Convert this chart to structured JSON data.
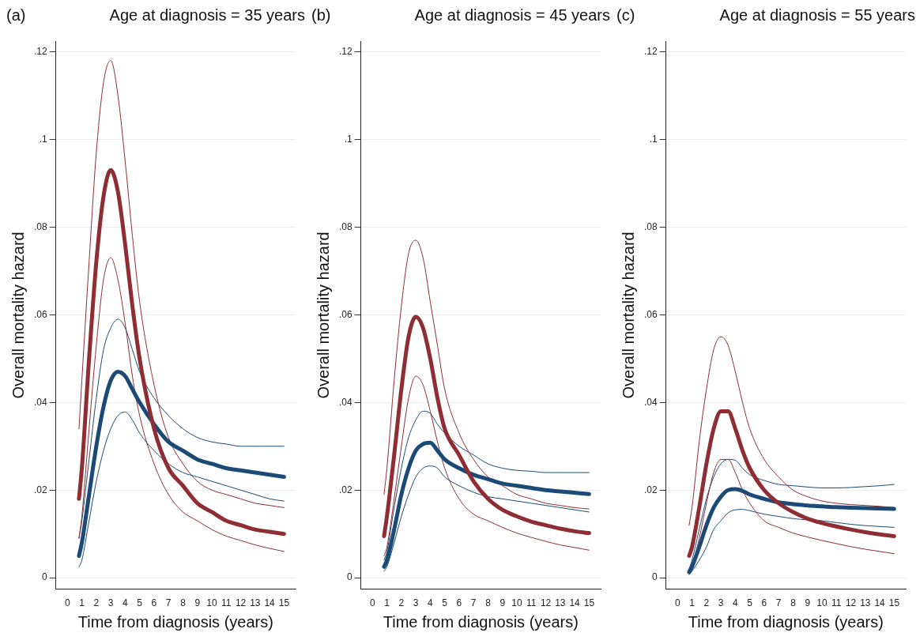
{
  "chart_data": [
    {
      "type": "line",
      "title": "Age at diagnosis = 35 years",
      "annotations": [
        "(a)"
      ],
      "xlabel": "Time from diagnosis (years)",
      "ylabel": "Overall mortality hazard",
      "xlim": [
        -0.8,
        15.8
      ],
      "ylim": [
        -0.0026,
        0.1224
      ],
      "xticks": [
        0,
        1,
        2,
        3,
        4,
        5,
        6,
        7,
        8,
        9,
        10,
        11,
        12,
        13,
        14,
        15
      ],
      "yticks": [
        {
          "value": 0,
          "label": "0"
        },
        {
          "value": 0.02,
          "label": ".02"
        },
        {
          "value": 0.04,
          "label": ".04"
        },
        {
          "value": 0.06,
          "label": ".06"
        },
        {
          "value": 0.08,
          "label": ".08"
        },
        {
          "value": 0.1,
          "label": ".1"
        },
        {
          "value": 0.12,
          "label": ".12"
        }
      ],
      "grid": "y",
      "legend": false,
      "x": [
        0.8,
        1,
        1.5,
        2,
        2.5,
        3,
        3.5,
        4,
        4.5,
        5,
        6,
        7,
        8,
        9,
        10,
        11,
        12,
        13,
        14,
        15
      ],
      "series": [
        {
          "color": "#8e2d33",
          "values": [
            0.018,
            0.025,
            0.05,
            0.072,
            0.087,
            0.093,
            0.088,
            0.076,
            0.062,
            0.05,
            0.034,
            0.025,
            0.021,
            0.017,
            0.015,
            0.013,
            0.012,
            0.011,
            0.0105,
            0.01
          ]
        },
        {
          "color": "#1a4a75",
          "values": [
            0.005,
            0.008,
            0.019,
            0.03,
            0.039,
            0.045,
            0.047,
            0.046,
            0.043,
            0.04,
            0.035,
            0.031,
            0.029,
            0.027,
            0.026,
            0.025,
            0.0245,
            0.024,
            0.0235,
            0.023
          ]
        },
        {
          "color": "#8e2d33",
          "values": [
            0.034,
            0.045,
            0.072,
            0.097,
            0.113,
            0.118,
            0.11,
            0.095,
            0.078,
            0.063,
            0.044,
            0.032,
            0.026,
            0.022,
            0.02,
            0.019,
            0.018,
            0.017,
            0.0165,
            0.016
          ]
        },
        {
          "color": "#8e2d33",
          "values": [
            0.009,
            0.014,
            0.034,
            0.053,
            0.068,
            0.073,
            0.068,
            0.058,
            0.046,
            0.037,
            0.026,
            0.019,
            0.015,
            0.013,
            0.011,
            0.0095,
            0.0085,
            0.0075,
            0.0067,
            0.006
          ]
        },
        {
          "color": "#1a4a75",
          "values": [
            0.009,
            0.013,
            0.027,
            0.041,
            0.052,
            0.057,
            0.059,
            0.057,
            0.052,
            0.047,
            0.041,
            0.037,
            0.034,
            0.032,
            0.031,
            0.0305,
            0.03,
            0.03,
            0.03,
            0.03
          ]
        },
        {
          "color": "#1a4a75",
          "values": [
            0.0025,
            0.004,
            0.013,
            0.022,
            0.029,
            0.034,
            0.037,
            0.0378,
            0.036,
            0.033,
            0.029,
            0.026,
            0.024,
            0.023,
            0.022,
            0.021,
            0.02,
            0.019,
            0.018,
            0.0175
          ]
        }
      ]
    },
    {
      "type": "line",
      "title": "Age at diagnosis = 45 years",
      "annotations": [
        "(b)"
      ],
      "xlabel": "Time from diagnosis (years)",
      "ylabel": "Overall mortality hazard",
      "xlim": [
        -0.8,
        15.8
      ],
      "ylim": [
        -0.0026,
        0.1224
      ],
      "xticks": [
        0,
        1,
        2,
        3,
        4,
        5,
        6,
        7,
        8,
        9,
        10,
        11,
        12,
        13,
        14,
        15
      ],
      "yticks": [
        {
          "value": 0,
          "label": "0"
        },
        {
          "value": 0.02,
          "label": ".02"
        },
        {
          "value": 0.04,
          "label": ".04"
        },
        {
          "value": 0.06,
          "label": ".06"
        },
        {
          "value": 0.08,
          "label": ".08"
        },
        {
          "value": 0.1,
          "label": ".1"
        },
        {
          "value": 0.12,
          "label": ".12"
        }
      ],
      "grid": "y",
      "legend": false,
      "x": [
        0.8,
        1,
        1.5,
        2,
        2.5,
        3,
        3.5,
        4,
        4.5,
        5,
        6,
        7,
        8,
        9,
        10,
        11,
        12,
        13,
        14,
        15
      ],
      "series": [
        {
          "color": "#8e2d33",
          "values": [
            0.0095,
            0.014,
            0.028,
            0.043,
            0.055,
            0.0595,
            0.057,
            0.05,
            0.041,
            0.034,
            0.028,
            0.022,
            0.018,
            0.0155,
            0.014,
            0.0128,
            0.012,
            0.0112,
            0.0106,
            0.0102
          ]
        },
        {
          "color": "#1a4a75",
          "values": [
            0.0025,
            0.004,
            0.011,
            0.019,
            0.025,
            0.029,
            0.0305,
            0.0308,
            0.029,
            0.027,
            0.025,
            0.0235,
            0.0225,
            0.0215,
            0.021,
            0.0205,
            0.02,
            0.0197,
            0.0194,
            0.0191
          ]
        },
        {
          "color": "#8e2d33",
          "values": [
            0.019,
            0.025,
            0.045,
            0.062,
            0.074,
            0.077,
            0.073,
            0.063,
            0.053,
            0.043,
            0.033,
            0.027,
            0.023,
            0.021,
            0.019,
            0.018,
            0.017,
            0.0165,
            0.016,
            0.0157
          ]
        },
        {
          "color": "#8e2d33",
          "values": [
            0.005,
            0.007,
            0.018,
            0.03,
            0.041,
            0.046,
            0.044,
            0.038,
            0.031,
            0.025,
            0.018,
            0.0145,
            0.013,
            0.0115,
            0.0102,
            0.0092,
            0.0083,
            0.0075,
            0.0069,
            0.0063
          ]
        },
        {
          "color": "#1a4a75",
          "values": [
            0.004,
            0.006,
            0.016,
            0.025,
            0.032,
            0.036,
            0.038,
            0.0375,
            0.035,
            0.033,
            0.03,
            0.028,
            0.026,
            0.025,
            0.0245,
            0.0243,
            0.024,
            0.024,
            0.024,
            0.024
          ]
        },
        {
          "color": "#1a4a75",
          "values": [
            0.0015,
            0.0025,
            0.008,
            0.014,
            0.019,
            0.023,
            0.025,
            0.0255,
            0.025,
            0.023,
            0.021,
            0.0195,
            0.0185,
            0.018,
            0.0175,
            0.017,
            0.0165,
            0.016,
            0.0155,
            0.015
          ]
        }
      ]
    },
    {
      "type": "line",
      "title": "Age at diagnosis = 55 years",
      "annotations": [
        "(c)"
      ],
      "xlabel": "Time from diagnosis (years)",
      "ylabel": "Overall mortality hazard",
      "xlim": [
        -0.8,
        15.8
      ],
      "ylim": [
        -0.0026,
        0.1224
      ],
      "xticks": [
        0,
        1,
        2,
        3,
        4,
        5,
        6,
        7,
        8,
        9,
        10,
        11,
        12,
        13,
        14,
        15
      ],
      "yticks": [
        {
          "value": 0,
          "label": "0"
        },
        {
          "value": 0.02,
          "label": ".02"
        },
        {
          "value": 0.04,
          "label": ".04"
        },
        {
          "value": 0.06,
          "label": ".06"
        },
        {
          "value": 0.08,
          "label": ".08"
        },
        {
          "value": 0.1,
          "label": ".1"
        },
        {
          "value": 0.12,
          "label": ".12"
        }
      ],
      "grid": "y",
      "legend": false,
      "x": [
        0.8,
        1,
        1.5,
        2,
        2.5,
        3,
        3.5,
        4,
        4.5,
        5,
        6,
        7,
        8,
        9,
        10,
        11,
        12,
        13,
        14,
        15
      ],
      "series": [
        {
          "color": "#8e2d33",
          "values": [
            0.005,
            0.007,
            0.016,
            0.026,
            0.034,
            0.038,
            0.038,
            0.034,
            0.029,
            0.025,
            0.02,
            0.017,
            0.015,
            0.0135,
            0.0125,
            0.0117,
            0.011,
            0.0104,
            0.0099,
            0.0095
          ]
        },
        {
          "color": "#1a4a75",
          "values": [
            0.0013,
            0.0025,
            0.007,
            0.012,
            0.016,
            0.0185,
            0.02,
            0.0202,
            0.0198,
            0.019,
            0.018,
            0.0172,
            0.0168,
            0.0165,
            0.0163,
            0.0161,
            0.016,
            0.0159,
            0.0158,
            0.0157
          ]
        },
        {
          "color": "#8e2d33",
          "values": [
            0.012,
            0.016,
            0.031,
            0.043,
            0.052,
            0.055,
            0.053,
            0.047,
            0.04,
            0.034,
            0.027,
            0.023,
            0.02,
            0.0185,
            0.0175,
            0.017,
            0.0167,
            0.0165,
            0.0163,
            0.016
          ]
        },
        {
          "color": "#8e2d33",
          "values": [
            0.002,
            0.003,
            0.009,
            0.017,
            0.024,
            0.027,
            0.027,
            0.024,
            0.02,
            0.017,
            0.013,
            0.0115,
            0.0102,
            0.0093,
            0.0085,
            0.0078,
            0.0071,
            0.0065,
            0.006,
            0.0055
          ]
        },
        {
          "color": "#1a4a75",
          "values": [
            0.002,
            0.004,
            0.011,
            0.018,
            0.023,
            0.026,
            0.027,
            0.0268,
            0.025,
            0.0235,
            0.0222,
            0.0213,
            0.021,
            0.0207,
            0.0205,
            0.0205,
            0.0206,
            0.0208,
            0.021,
            0.0213
          ]
        },
        {
          "color": "#1a4a75",
          "values": [
            0.0007,
            0.0015,
            0.004,
            0.007,
            0.011,
            0.013,
            0.0148,
            0.0155,
            0.0156,
            0.0153,
            0.0145,
            0.014,
            0.0135,
            0.0132,
            0.013,
            0.0126,
            0.0122,
            0.0119,
            0.0117,
            0.0115
          ]
        }
      ]
    }
  ]
}
